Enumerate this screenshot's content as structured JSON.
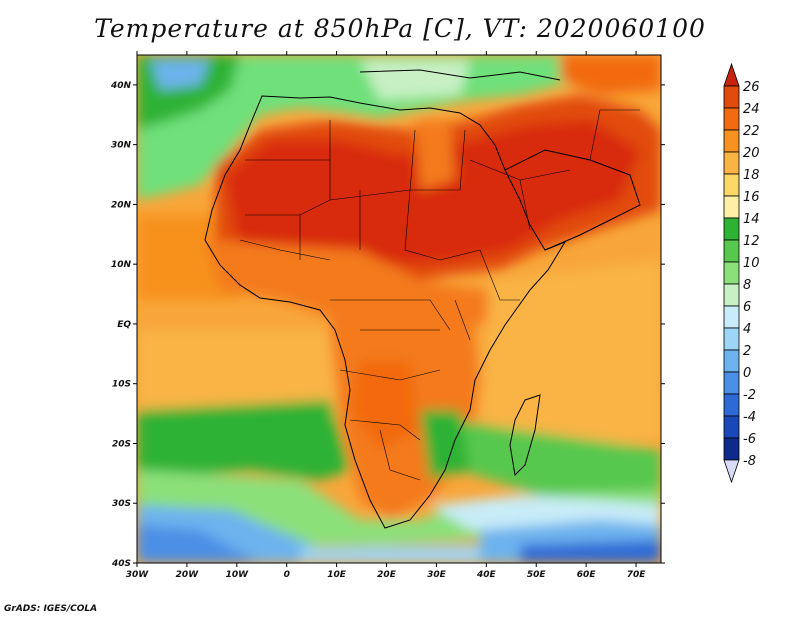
{
  "title": "Temperature at 850hPa [C], VT: 2020060100",
  "credit": "GrADS: IGES/COLA",
  "lat_labels": [
    "40N",
    "30N",
    "20N",
    "10N",
    "EQ",
    "10S",
    "20S",
    "30S",
    "40S"
  ],
  "lon_labels": [
    "30W",
    "20W",
    "10W",
    "0",
    "10E",
    "20E",
    "30E",
    "40E",
    "50E",
    "60E",
    "70E"
  ],
  "colorbar": {
    "labels": [
      "26",
      "24",
      "22",
      "20",
      "18",
      "16",
      "14",
      "12",
      "10",
      "8",
      "6",
      "4",
      "2",
      "0",
      "-2",
      "-4",
      "-6",
      "-8"
    ],
    "colors": [
      "#c8230e",
      "#e24b0e",
      "#f26b10",
      "#f7911f",
      "#f9b444",
      "#fbd768",
      "#fdf0a5",
      "#2db234",
      "#56c84e",
      "#8be07a",
      "#c8f0c4",
      "#c8ecf8",
      "#9ed4f6",
      "#6db3ee",
      "#4b8fe6",
      "#2e6ad6",
      "#1b48b8",
      "#0d2b8a",
      "#0a1d62"
    ]
  },
  "colors": {
    "ocean_north": "#6fe07a",
    "sahara": "#d82a10",
    "land_mid": "#f47a1a",
    "ocean_trop": "#f8a63a",
    "ocean_south": "#2db234",
    "ocean_cold": "#4b8fe6",
    "border": "#000000"
  }
}
